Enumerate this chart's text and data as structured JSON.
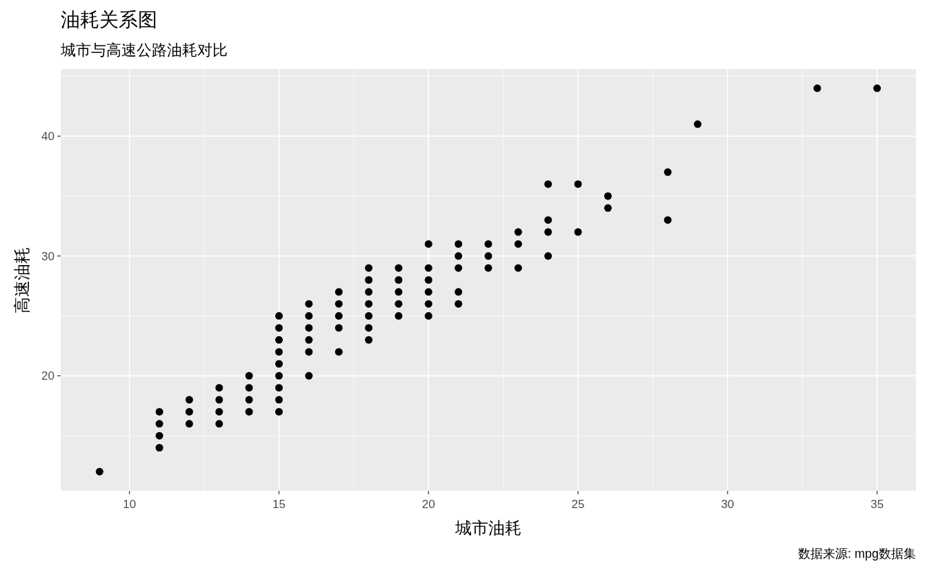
{
  "chart_data": {
    "type": "scatter",
    "title": "油耗关系图",
    "subtitle": "城市与高速公路油耗对比",
    "xlabel": "城市油耗",
    "ylabel": "高速油耗",
    "annotations": [
      "数据来源: mpg数据集"
    ],
    "x": [
      9,
      11,
      11,
      11,
      11,
      12,
      12,
      12,
      13,
      13,
      13,
      13,
      14,
      14,
      14,
      14,
      15,
      15,
      15,
      15,
      15,
      15,
      15,
      15,
      15,
      16,
      16,
      16,
      16,
      16,
      16,
      17,
      17,
      17,
      17,
      17,
      18,
      18,
      18,
      18,
      18,
      18,
      18,
      19,
      19,
      19,
      19,
      19,
      20,
      20,
      20,
      20,
      20,
      20,
      21,
      21,
      21,
      21,
      21,
      22,
      22,
      22,
      23,
      23,
      23,
      24,
      24,
      24,
      24,
      25,
      25,
      26,
      26,
      28,
      28,
      29,
      33,
      35
    ],
    "series": [
      {
        "color": "#000000",
        "values": [
          12,
          14,
          15,
          16,
          17,
          16,
          17,
          18,
          16,
          17,
          18,
          19,
          17,
          18,
          19,
          20,
          17,
          18,
          19,
          20,
          21,
          22,
          23,
          24,
          25,
          20,
          22,
          23,
          24,
          25,
          26,
          22,
          24,
          25,
          26,
          27,
          23,
          24,
          25,
          26,
          27,
          28,
          29,
          25,
          26,
          27,
          28,
          29,
          25,
          26,
          27,
          28,
          29,
          31,
          26,
          27,
          29,
          30,
          31,
          29,
          30,
          31,
          29,
          31,
          32,
          30,
          32,
          33,
          36,
          32,
          36,
          34,
          35,
          33,
          37,
          41,
          44,
          44
        ]
      }
    ],
    "xlim": [
      7.7,
      36.3
    ],
    "ylim": [
      10.4,
      45.6
    ],
    "xticks": [
      10,
      15,
      20,
      25,
      30,
      35
    ],
    "yticks": [
      20,
      30,
      40
    ],
    "grid": true,
    "marker": "circle"
  }
}
